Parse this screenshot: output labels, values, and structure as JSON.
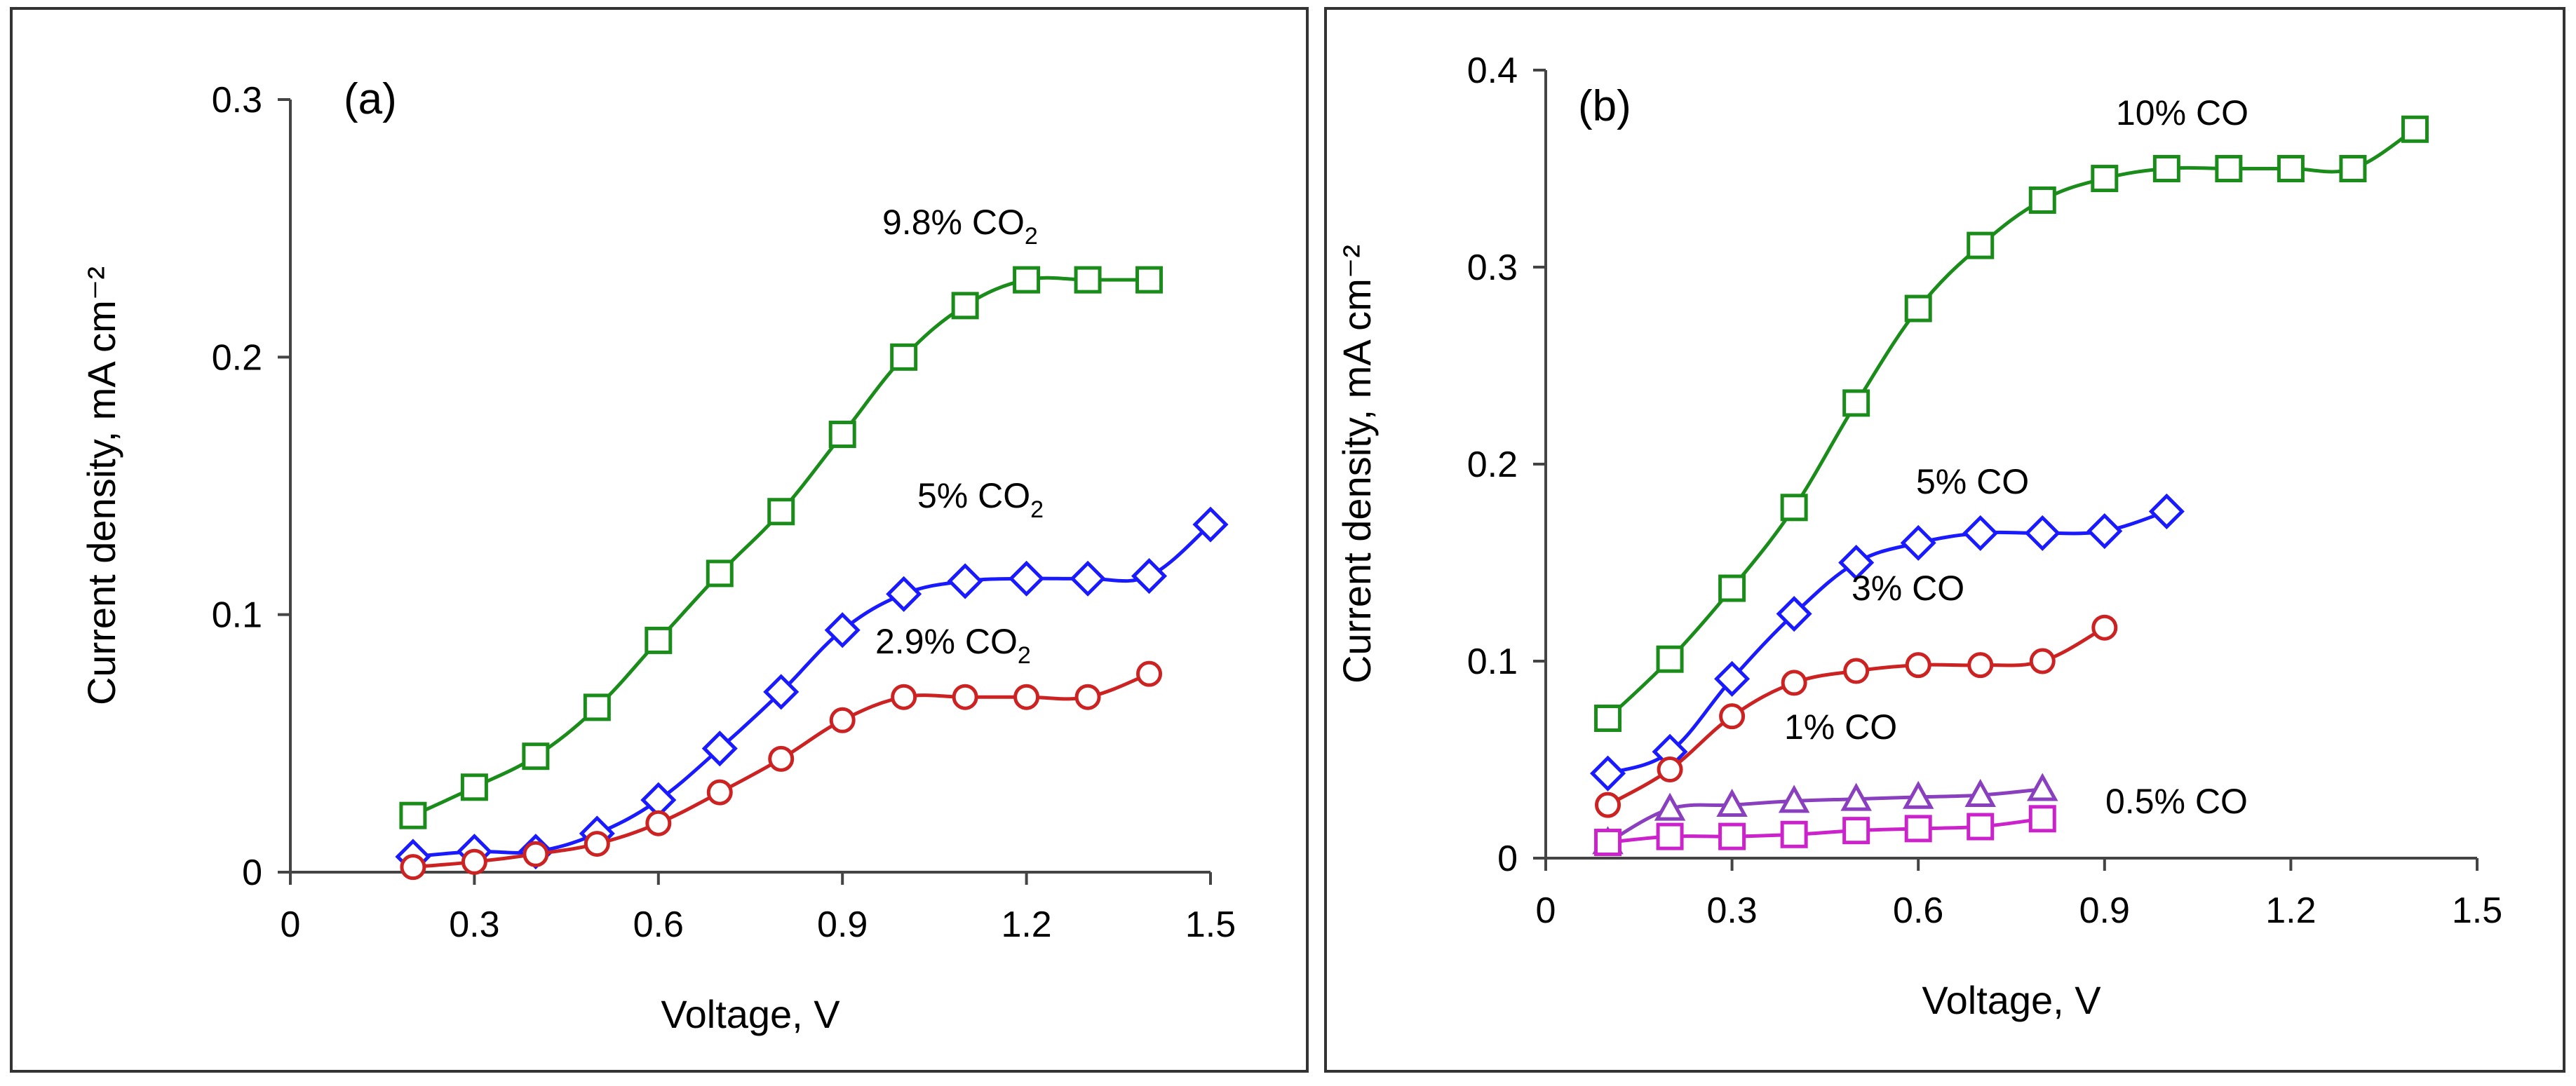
{
  "chart_data": [
    {
      "type": "line",
      "panel_label": "(a)",
      "xlabel": "Voltage, V",
      "ylabel": "Current density, mA cm⁻²",
      "xlim": [
        0,
        1.5
      ],
      "ylim": [
        0,
        0.3
      ],
      "x_ticks": [
        "0",
        "0.3",
        "0.6",
        "0.9",
        "1.2",
        "1.5"
      ],
      "y_ticks": [
        "0",
        "0.1",
        "0.2",
        "0.3"
      ],
      "series": [
        {
          "name": "9.8% CO2",
          "label_main": "9.8% CO",
          "label_sub": "2",
          "color": "#1a8c1a",
          "marker": "square",
          "x": [
            0.2,
            0.3,
            0.4,
            0.5,
            0.6,
            0.7,
            0.8,
            0.9,
            1.0,
            1.1,
            1.2,
            1.3,
            1.4
          ],
          "y": [
            0.022,
            0.033,
            0.045,
            0.064,
            0.09,
            0.116,
            0.14,
            0.17,
            0.2,
            0.22,
            0.23,
            0.23,
            0.23
          ]
        },
        {
          "name": "5% CO2",
          "label_main": "5% CO",
          "label_sub": "2",
          "color": "#1a1aff",
          "marker": "diamond",
          "x": [
            0.2,
            0.3,
            0.4,
            0.5,
            0.6,
            0.7,
            0.8,
            0.9,
            1.0,
            1.1,
            1.2,
            1.3,
            1.4,
            1.5
          ],
          "y": [
            0.006,
            0.008,
            0.008,
            0.015,
            0.028,
            0.048,
            0.07,
            0.094,
            0.108,
            0.113,
            0.114,
            0.114,
            0.115,
            0.135
          ]
        },
        {
          "name": "2.9% CO2",
          "label_main": "2.9% CO",
          "label_sub": "2",
          "color": "#cc2222",
          "marker": "circle",
          "x": [
            0.2,
            0.3,
            0.4,
            0.5,
            0.6,
            0.7,
            0.8,
            0.9,
            1.0,
            1.1,
            1.2,
            1.3,
            1.4
          ],
          "y": [
            0.002,
            0.004,
            0.007,
            0.011,
            0.019,
            0.031,
            0.044,
            0.059,
            0.068,
            0.068,
            0.068,
            0.068,
            0.077
          ]
        }
      ]
    },
    {
      "type": "line",
      "panel_label": "(b)",
      "xlabel": "Voltage, V",
      "ylabel": "Current density, mA cm⁻²",
      "xlim": [
        0,
        1.5
      ],
      "ylim": [
        0,
        0.4
      ],
      "x_ticks": [
        "0",
        "0.3",
        "0.6",
        "0.9",
        "1.2",
        "1.5"
      ],
      "y_ticks": [
        "0",
        "0.1",
        "0.2",
        "0.3",
        "0.4"
      ],
      "series": [
        {
          "name": "10% CO",
          "label_main": "10% CO",
          "label_sub": "",
          "color": "#1a8c1a",
          "marker": "square",
          "x": [
            0.1,
            0.2,
            0.3,
            0.4,
            0.5,
            0.6,
            0.7,
            0.8,
            0.9,
            1.0,
            1.1,
            1.2,
            1.3,
            1.4
          ],
          "y": [
            0.071,
            0.101,
            0.137,
            0.178,
            0.231,
            0.279,
            0.311,
            0.334,
            0.345,
            0.35,
            0.35,
            0.35,
            0.35,
            0.37
          ]
        },
        {
          "name": "5% CO",
          "label_main": "5% CO",
          "label_sub": "",
          "color": "#1a1aff",
          "marker": "diamond",
          "x": [
            0.1,
            0.2,
            0.3,
            0.4,
            0.5,
            0.6,
            0.7,
            0.8,
            0.9,
            1.0
          ],
          "y": [
            0.043,
            0.054,
            0.091,
            0.124,
            0.15,
            0.16,
            0.165,
            0.165,
            0.166,
            0.176
          ]
        },
        {
          "name": "3% CO",
          "label_main": "3% CO",
          "label_sub": "",
          "color": "#cc2222",
          "marker": "circle",
          "x": [
            0.1,
            0.2,
            0.3,
            0.4,
            0.5,
            0.6,
            0.7,
            0.8,
            0.9
          ],
          "y": [
            0.027,
            0.045,
            0.072,
            0.089,
            0.095,
            0.098,
            0.098,
            0.1,
            0.117
          ]
        },
        {
          "name": "1% CO",
          "label_main": "1% CO",
          "label_sub": "",
          "color": "#8a3fbf",
          "marker": "triangle",
          "x": [
            0.1,
            0.2,
            0.3,
            0.4,
            0.5,
            0.6,
            0.7,
            0.8
          ],
          "y": [
            0.008,
            0.025,
            0.027,
            0.029,
            0.03,
            0.031,
            0.032,
            0.035
          ]
        },
        {
          "name": "0.5% CO",
          "label_main": "0.5% CO",
          "label_sub": "",
          "color": "#cc22cc",
          "marker": "square",
          "x": [
            0.1,
            0.2,
            0.3,
            0.4,
            0.5,
            0.6,
            0.7,
            0.8
          ],
          "y": [
            0.008,
            0.011,
            0.011,
            0.012,
            0.014,
            0.015,
            0.016,
            0.02
          ]
        }
      ]
    }
  ]
}
